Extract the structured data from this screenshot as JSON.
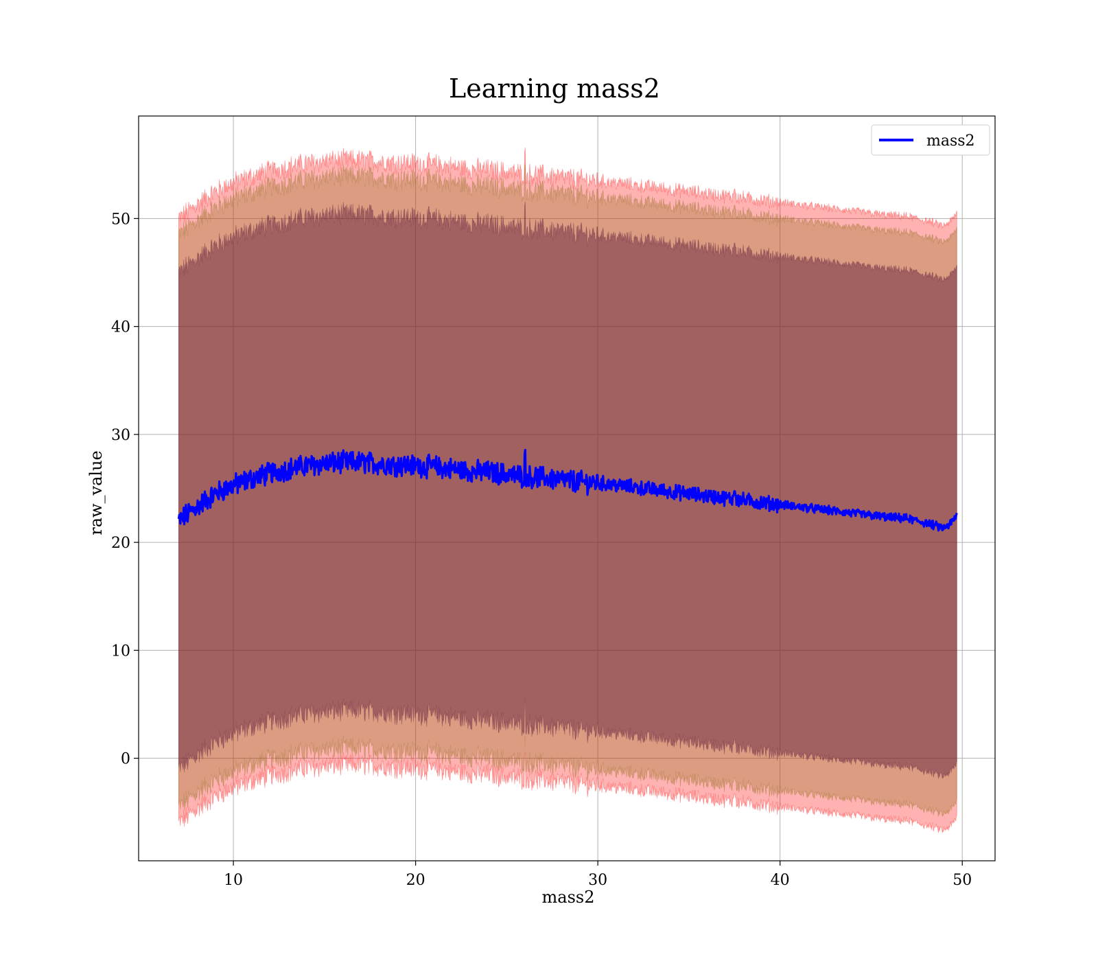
{
  "chart_data": {
    "type": "line",
    "title": "Learning mass2",
    "xlabel": "mass2",
    "ylabel": "raw_value",
    "xlim": [
      4.8,
      51.8
    ],
    "ylim": [
      -9.5,
      59.5
    ],
    "xticks": [
      10,
      20,
      30,
      40,
      50
    ],
    "yticks": [
      0,
      10,
      20,
      30,
      40,
      50
    ],
    "grid": true,
    "legend_position": "top-right",
    "colors": {
      "mean_line": "#0000ff",
      "band_outer": "#ff0000",
      "band_middle": "#8b6914",
      "band_inner": "#5c1a3a"
    },
    "mean_anchors": {
      "x": [
        7.0,
        8.0,
        9.0,
        10.0,
        11.0,
        12.0,
        13.0,
        14.0,
        15.0,
        16.0,
        17.0,
        18.0,
        19.0,
        20.0,
        21.0,
        22.0,
        23.0,
        24.0,
        25.0,
        26.0,
        27.0,
        28.0,
        29.0,
        30.0,
        31.0,
        32.0,
        33.0,
        34.0,
        35.0,
        36.0,
        37.0,
        38.0,
        39.0,
        40.0,
        41.0,
        42.0,
        43.0,
        44.0,
        45.0,
        46.0,
        47.0,
        48.0,
        49.0,
        49.4,
        49.7
      ],
      "y": [
        22.0,
        23.3,
        24.5,
        25.3,
        25.9,
        26.4,
        26.8,
        27.1,
        27.3,
        27.4,
        27.4,
        27.3,
        27.2,
        27.1,
        27.0,
        26.8,
        26.6,
        26.5,
        26.3,
        26.1,
        26.0,
        25.8,
        25.6,
        25.5,
        25.3,
        25.1,
        24.9,
        24.7,
        24.5,
        24.3,
        24.1,
        23.9,
        23.7,
        23.5,
        23.3,
        23.1,
        22.9,
        22.7,
        22.5,
        22.3,
        22.2,
        21.8,
        21.3,
        21.8,
        22.5
      ]
    },
    "series": [
      {
        "name": "mass2",
        "role": "mean",
        "points": 1400,
        "x_range": [
          7.0,
          49.7
        ]
      }
    ],
    "bands": [
      {
        "role": "outer",
        "offset": 28.0,
        "opacity": 0.3
      },
      {
        "role": "middle",
        "offset": 26.5,
        "opacity": 0.3
      },
      {
        "role": "inner",
        "offset": 23.0,
        "opacity": 0.45
      }
    ]
  }
}
